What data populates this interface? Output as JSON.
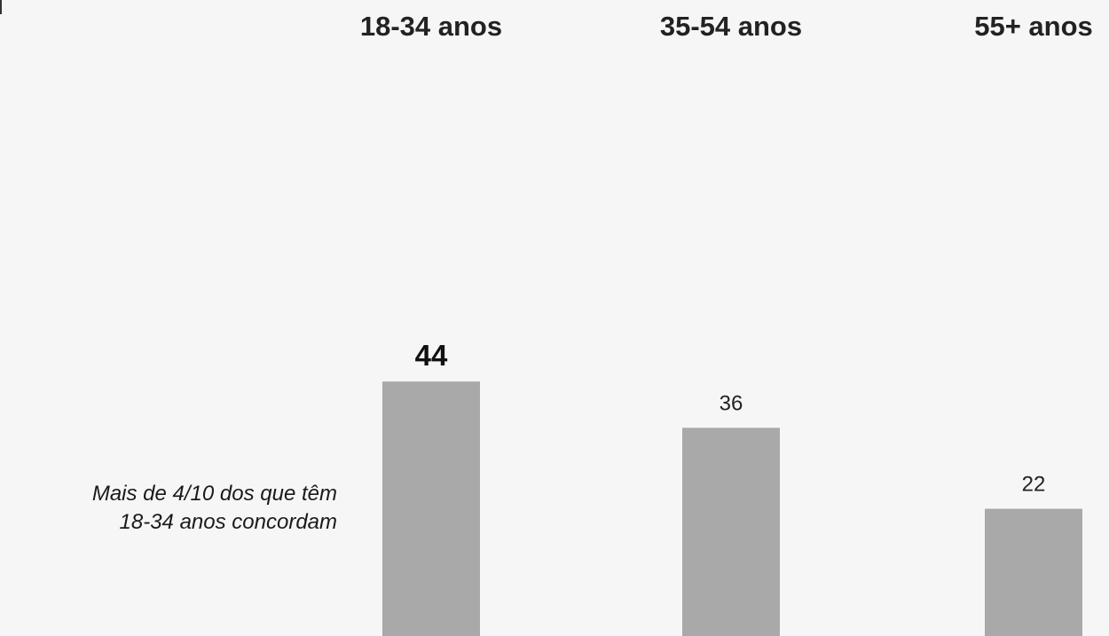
{
  "chart_data": {
    "type": "bar",
    "categories": [
      "18-34 anos",
      "35-54 anos",
      "55+ anos"
    ],
    "values": [
      44,
      36,
      22
    ],
    "value_labels": [
      "44",
      "36",
      "22"
    ],
    "highlight_index": 0,
    "bar_color": "#a9a9a9",
    "ylim": [
      0,
      100
    ],
    "grid": false,
    "legend": "none",
    "title": "",
    "xlabel": "",
    "ylabel": "",
    "annotation": {
      "line1": "Mais de 4/10 dos que têm",
      "line2": "18-34 anos concordam"
    }
  }
}
